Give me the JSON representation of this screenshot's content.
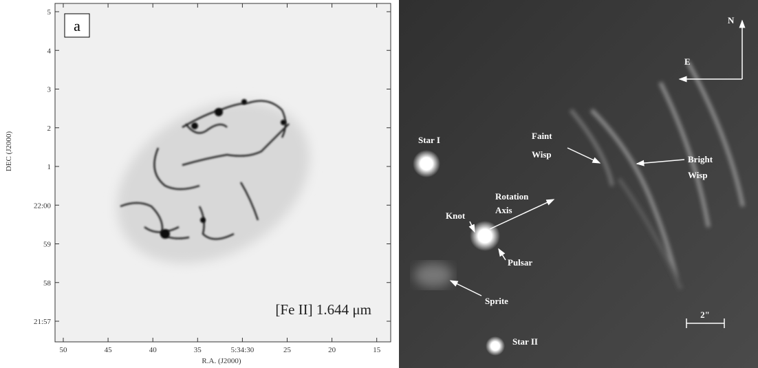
{
  "panel_a": {
    "label": "a",
    "caption": "[Fe II] 1.644 μm",
    "y_axis_label": "DEC (J2000)",
    "x_axis_label": "R.A. (J2000)",
    "yticks": [
      "5",
      "4",
      "3",
      "2",
      "1",
      "22:00",
      "59",
      "58",
      "21:57"
    ],
    "xticks": [
      "50",
      "45",
      "40",
      "35",
      "5:34:30",
      "25",
      "20",
      "15"
    ]
  },
  "panel_b": {
    "north": "N",
    "east": "E",
    "star_1": "Star I",
    "star_2": "Star II",
    "faint_wisp": [
      "Faint",
      "Wisp"
    ],
    "bright_wisp": [
      "Bright",
      "Wisp"
    ],
    "rotation_axis": [
      "Rotation",
      "Axis"
    ],
    "knot": "Knot",
    "pulsar": "Pulsar",
    "sprite": "Sprite",
    "scale": "2\""
  }
}
